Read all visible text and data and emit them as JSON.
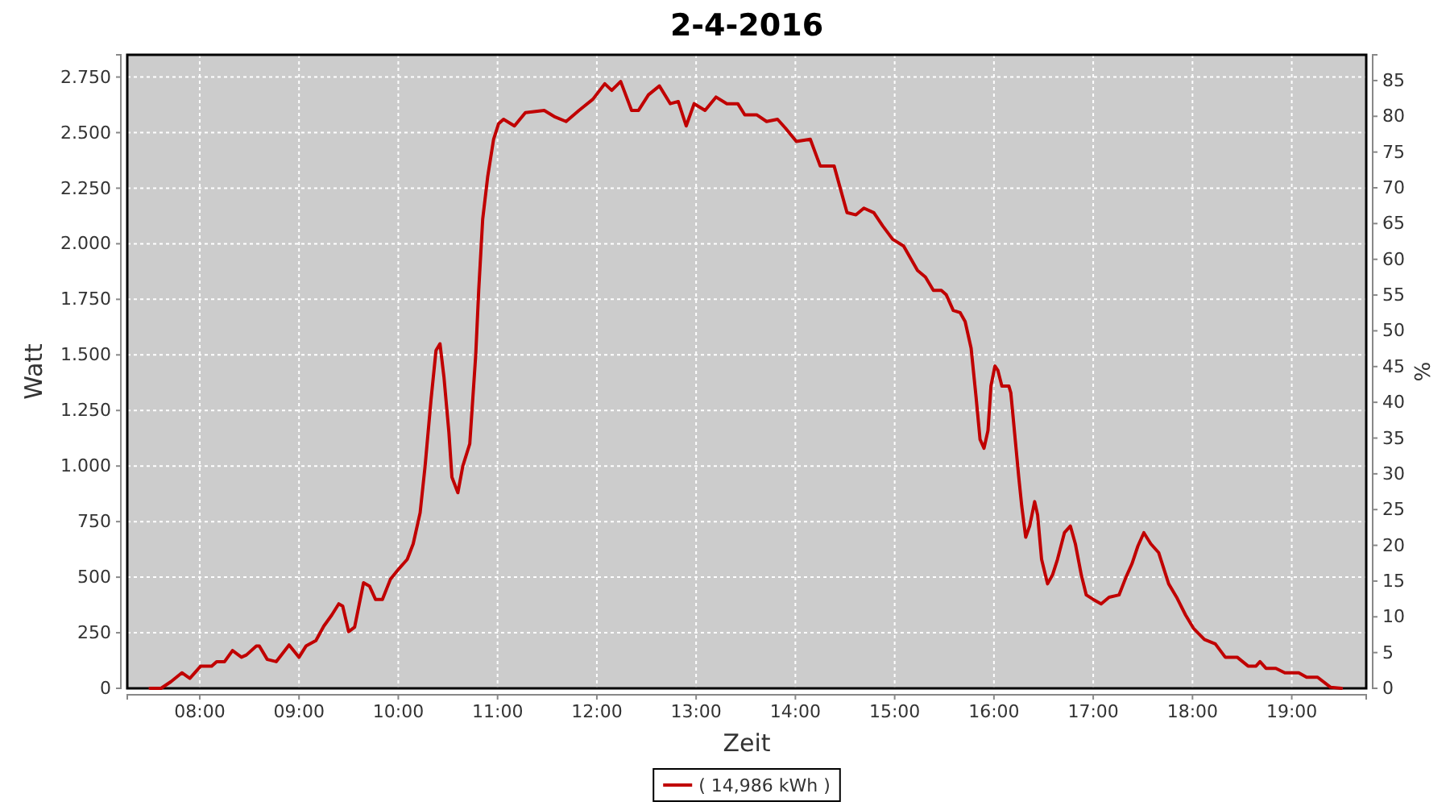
{
  "chart_data": {
    "type": "line",
    "title": "2-4-2016",
    "xlabel": "Zeit",
    "ylabel": "Watt",
    "y2label": "%",
    "xlim": [
      7.27,
      19.75
    ],
    "xticks": [
      {
        "value": 8,
        "label": "08:00"
      },
      {
        "value": 9,
        "label": "09:00"
      },
      {
        "value": 10,
        "label": "10:00"
      },
      {
        "value": 11,
        "label": "11:00"
      },
      {
        "value": 12,
        "label": "12:00"
      },
      {
        "value": 13,
        "label": "13:00"
      },
      {
        "value": 14,
        "label": "14:00"
      },
      {
        "value": 15,
        "label": "15:00"
      },
      {
        "value": 16,
        "label": "16:00"
      },
      {
        "value": 17,
        "label": "17:00"
      },
      {
        "value": 18,
        "label": "18:00"
      },
      {
        "value": 19,
        "label": "19:00"
      }
    ],
    "ylim": [
      0,
      2850
    ],
    "yticks": [
      0,
      250,
      500,
      750,
      {
        "value": 1000,
        "label": "1.000"
      },
      {
        "value": 1250,
        "label": "1.250"
      },
      {
        "value": 1500,
        "label": "1.500"
      },
      {
        "value": 1750,
        "label": "1.750"
      },
      {
        "value": 2000,
        "label": "2.000"
      },
      {
        "value": 2250,
        "label": "2.250"
      },
      {
        "value": 2500,
        "label": "2.500"
      },
      {
        "value": 2750,
        "label": "2.750"
      }
    ],
    "y2lim": [
      0,
      88.6
    ],
    "y2ticks": [
      0,
      5,
      10,
      15,
      20,
      25,
      30,
      35,
      40,
      45,
      50,
      55,
      60,
      65,
      70,
      75,
      80,
      85
    ],
    "grid": true,
    "legend": "bottom",
    "marker": "none",
    "line_style": "solid",
    "series": [
      {
        "name": "( 14,986 kWh )",
        "color": "#c00000",
        "x": [
          7.5,
          7.61,
          7.71,
          7.82,
          7.9,
          8.01,
          8.12,
          8.17,
          8.25,
          8.33,
          8.42,
          8.47,
          8.57,
          8.6,
          8.68,
          8.77,
          8.9,
          9.0,
          9.07,
          9.17,
          9.25,
          9.33,
          9.4,
          9.44,
          9.5,
          9.56,
          9.65,
          9.71,
          9.77,
          9.84,
          9.92,
          10.01,
          10.09,
          10.15,
          10.22,
          10.27,
          10.33,
          10.38,
          10.42,
          10.46,
          10.51,
          10.54,
          10.6,
          10.65,
          10.72,
          10.78,
          10.81,
          10.85,
          10.9,
          10.96,
          11.01,
          11.06,
          11.17,
          11.28,
          11.47,
          11.58,
          11.69,
          11.82,
          11.96,
          12.08,
          12.15,
          12.24,
          12.35,
          12.42,
          12.52,
          12.63,
          12.74,
          12.82,
          12.9,
          12.98,
          13.09,
          13.2,
          13.31,
          13.42,
          13.49,
          13.61,
          13.71,
          13.82,
          13.9,
          14.01,
          14.15,
          14.25,
          14.39,
          14.52,
          14.61,
          14.69,
          14.79,
          14.88,
          14.98,
          15.09,
          15.23,
          15.31,
          15.39,
          15.47,
          15.52,
          15.59,
          15.66,
          15.71,
          15.77,
          15.82,
          15.86,
          15.9,
          15.94,
          15.97,
          16.01,
          16.04,
          16.08,
          16.15,
          16.17,
          16.21,
          16.25,
          16.28,
          16.32,
          16.36,
          16.41,
          16.44,
          16.48,
          16.54,
          16.59,
          16.64,
          16.71,
          16.77,
          16.82,
          16.88,
          16.93,
          17.0,
          17.08,
          17.16,
          17.26,
          17.33,
          17.39,
          17.45,
          17.51,
          17.58,
          17.66,
          17.76,
          17.84,
          17.93,
          18.01,
          18.12,
          18.23,
          18.33,
          18.45,
          18.56,
          18.64,
          18.68,
          18.74,
          18.84,
          18.93,
          19.07,
          19.15,
          19.26,
          19.39,
          19.5
        ],
        "values": [
          0,
          0,
          30,
          70,
          45,
          100,
          100,
          120,
          120,
          170,
          140,
          150,
          190,
          190,
          130,
          120,
          195,
          140,
          190,
          215,
          280,
          330,
          380,
          370,
          255,
          275,
          475,
          460,
          400,
          400,
          490,
          540,
          580,
          650,
          790,
          1000,
          1300,
          1520,
          1550,
          1400,
          1150,
          950,
          880,
          1000,
          1100,
          1500,
          1790,
          2110,
          2300,
          2470,
          2540,
          2560,
          2530,
          2590,
          2600,
          2570,
          2550,
          2600,
          2650,
          2720,
          2690,
          2730,
          2600,
          2600,
          2670,
          2710,
          2630,
          2640,
          2530,
          2630,
          2600,
          2660,
          2630,
          2630,
          2580,
          2580,
          2550,
          2560,
          2520,
          2460,
          2470,
          2350,
          2350,
          2140,
          2130,
          2160,
          2140,
          2080,
          2020,
          1990,
          1880,
          1850,
          1790,
          1790,
          1770,
          1700,
          1690,
          1650,
          1530,
          1310,
          1120,
          1080,
          1160,
          1360,
          1450,
          1430,
          1360,
          1360,
          1330,
          1140,
          950,
          820,
          680,
          730,
          840,
          780,
          580,
          470,
          510,
          580,
          700,
          730,
          650,
          510,
          420,
          400,
          380,
          410,
          420,
          500,
          560,
          640,
          700,
          650,
          610,
          470,
          410,
          330,
          270,
          220,
          200,
          140,
          140,
          100,
          100,
          120,
          90,
          90,
          70,
          70,
          50,
          50,
          5,
          0
        ]
      }
    ]
  }
}
